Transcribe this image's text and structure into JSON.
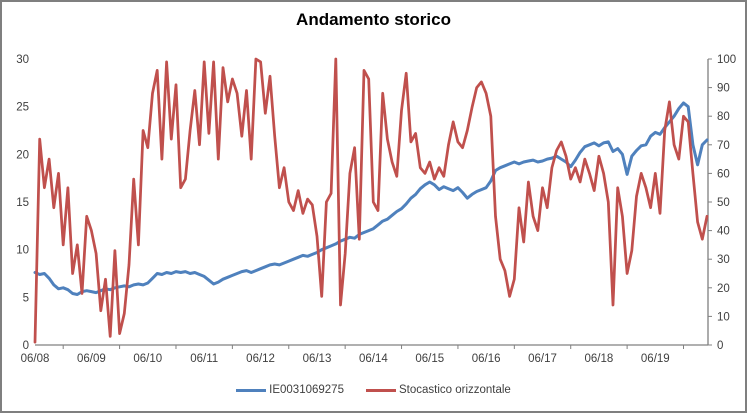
{
  "title": "Andamento storico",
  "colors": {
    "blue_series": "#4F81BD",
    "red_series": "#C0504D",
    "axis_line": "#808080",
    "axis_text": "#3f3f3f",
    "window_border": "#7f7f7f",
    "background": "#ffffff"
  },
  "legend": [
    {
      "label": "IE0031069275",
      "color": "#4F81BD"
    },
    {
      "label": "Stocastico orizzontale",
      "color": "#C0504D"
    }
  ],
  "chart_data": {
    "type": "line",
    "title": "Andamento storico",
    "grid": false,
    "legend_position": "bottom",
    "x_unit": "months, sampled monthly from 06/08 to ~05/20",
    "x_tick_labels": [
      "06/08",
      "06/09",
      "06/10",
      "06/11",
      "06/12",
      "06/13",
      "06/14",
      "06/15",
      "06/16",
      "06/17",
      "06/18",
      "06/19"
    ],
    "left_axis": {
      "min": 0,
      "max": 30,
      "ticks": [
        0,
        5,
        10,
        15,
        20,
        25,
        30
      ]
    },
    "right_axis": {
      "min": 0,
      "max": 100,
      "ticks": [
        0,
        10,
        20,
        30,
        40,
        50,
        60,
        70,
        80,
        90,
        100
      ]
    },
    "series": [
      {
        "name": "IE0031069275",
        "axis": "left",
        "color": "#4F81BD",
        "stroke_width": 3,
        "values": [
          7.6,
          7.4,
          7.5,
          7.0,
          6.3,
          5.9,
          6.0,
          5.8,
          5.4,
          5.3,
          5.6,
          5.7,
          5.6,
          5.5,
          5.7,
          5.9,
          5.8,
          6.0,
          6.1,
          6.2,
          6.1,
          6.3,
          6.4,
          6.3,
          6.5,
          7.0,
          7.5,
          7.4,
          7.6,
          7.5,
          7.7,
          7.6,
          7.7,
          7.5,
          7.6,
          7.4,
          7.2,
          6.8,
          6.4,
          6.6,
          6.9,
          7.1,
          7.3,
          7.5,
          7.7,
          7.8,
          7.6,
          7.8,
          8.0,
          8.2,
          8.4,
          8.5,
          8.4,
          8.6,
          8.8,
          9.0,
          9.2,
          9.4,
          9.3,
          9.5,
          9.7,
          10.0,
          10.2,
          10.4,
          10.6,
          10.9,
          11.1,
          11.3,
          11.2,
          11.6,
          11.8,
          12.0,
          12.2,
          12.6,
          13.0,
          13.2,
          13.6,
          14.0,
          14.3,
          14.8,
          15.4,
          15.8,
          16.4,
          16.8,
          17.1,
          16.8,
          16.3,
          16.6,
          16.4,
          16.2,
          16.5,
          16.0,
          15.4,
          15.8,
          16.1,
          16.3,
          16.5,
          17.2,
          18.3,
          18.6,
          18.8,
          19.0,
          19.2,
          19.0,
          19.2,
          19.3,
          19.4,
          19.2,
          19.3,
          19.5,
          19.6,
          19.8,
          19.5,
          19.2,
          18.7,
          19.4,
          20.2,
          20.8,
          21.0,
          21.2,
          20.9,
          21.2,
          21.3,
          20.3,
          20.6,
          20.0,
          17.9,
          19.8,
          20.4,
          20.9,
          21.0,
          21.9,
          22.3,
          22.1,
          22.8,
          23.4,
          24.0,
          24.8,
          25.4,
          25.0,
          21.0,
          18.9,
          21.0,
          21.5
        ]
      },
      {
        "name": "Stocastico orizzontale",
        "axis": "right",
        "color": "#C0504D",
        "stroke_width": 2.75,
        "values": [
          1,
          72,
          55,
          65,
          48,
          60,
          35,
          55,
          25,
          35,
          18,
          45,
          40,
          32,
          12,
          23,
          3,
          33,
          4,
          11,
          28,
          58,
          35,
          75,
          69,
          88,
          96,
          65,
          99,
          72,
          91,
          55,
          58,
          75,
          89,
          70,
          99,
          74,
          99,
          65,
          97,
          85,
          93,
          88,
          73,
          89,
          65,
          100,
          99,
          81,
          94,
          73,
          55,
          62,
          50,
          47,
          54,
          46,
          51,
          49,
          38,
          17,
          50,
          53,
          100,
          14,
          32,
          60,
          69,
          37,
          96,
          93,
          50,
          47,
          88,
          72,
          64,
          59,
          82,
          95,
          71,
          74,
          62,
          60,
          64,
          58,
          62,
          59,
          70,
          78,
          71,
          69,
          75,
          83,
          90,
          92,
          88,
          80,
          45,
          30,
          26,
          17,
          23,
          48,
          36,
          57,
          45,
          40,
          55,
          48,
          62,
          68,
          71,
          66,
          58,
          62,
          57,
          65,
          60,
          54,
          66,
          60,
          50,
          14,
          55,
          45,
          25,
          33,
          52,
          60,
          55,
          48,
          60,
          46,
          75,
          85,
          70,
          65,
          80,
          78,
          60,
          43,
          37,
          45
        ]
      }
    ]
  }
}
